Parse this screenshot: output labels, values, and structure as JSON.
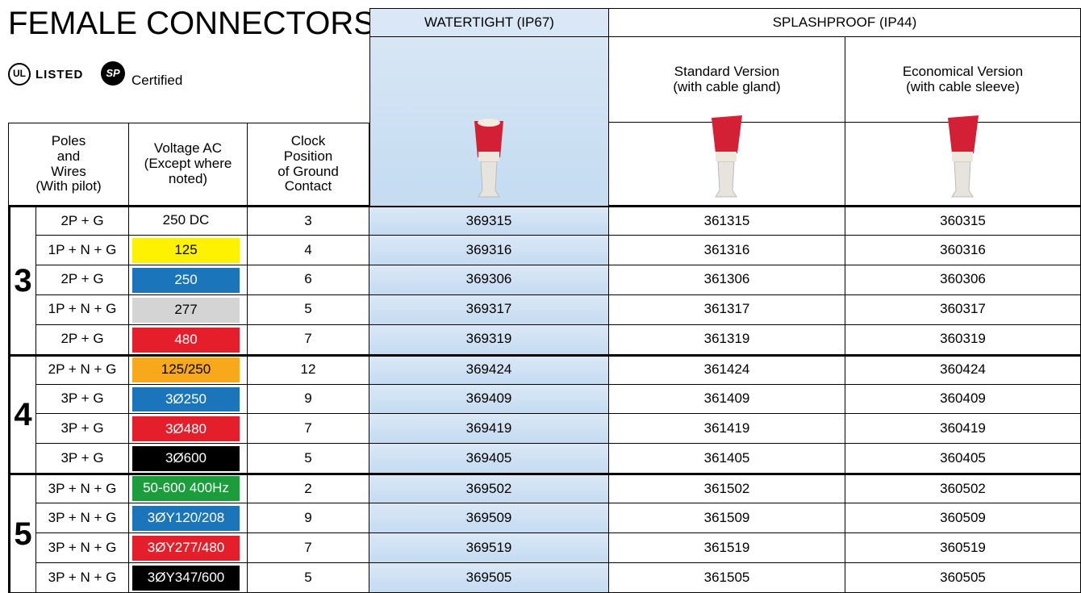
{
  "header": {
    "title": "FEMALE CONNECTORS",
    "ul_logo": "UL",
    "listed": "LISTED",
    "csa_logo": "SP",
    "certified": "Certified"
  },
  "column_groups": [
    {
      "label": "WATERTIGHT (IP67)"
    },
    {
      "label": "SPLASHPROOF (IP44)",
      "sub": [
        "Standard Version\n(with cable gland)",
        "Economical Version\n(with cable sleeve)"
      ]
    }
  ],
  "columns": [
    "Poles\nand\nWires\n(With pilot)",
    "Voltage AC\n(Except where\nnoted)",
    "Clock\nPosition\nof Ground\nContact"
  ],
  "groups": [
    {
      "poles": "3",
      "rows": [
        {
          "wires": "2P + G",
          "voltage": "250 DC",
          "voltage_color": "#ffffff",
          "clock": "3",
          "parts": [
            "369315",
            "361315",
            "360315"
          ]
        },
        {
          "wires": "1P + N + G",
          "voltage": "125",
          "voltage_color": "#fff200",
          "clock": "4",
          "parts": [
            "369316",
            "361316",
            "360316"
          ]
        },
        {
          "wires": "2P + G",
          "voltage": "250",
          "voltage_color": "#1b75bb",
          "clock": "6",
          "parts": [
            "369306",
            "361306",
            "360306"
          ]
        },
        {
          "wires": "1P + N + G",
          "voltage": "277",
          "voltage_color": "#d4d4d4",
          "clock": "5",
          "parts": [
            "369317",
            "361317",
            "360317"
          ]
        },
        {
          "wires": "2P + G",
          "voltage": "480",
          "voltage_color": "#e41e2b",
          "clock": "7",
          "parts": [
            "369319",
            "361319",
            "360319"
          ]
        }
      ]
    },
    {
      "poles": "4",
      "rows": [
        {
          "wires": "2P + N + G",
          "voltage": "125/250",
          "voltage_color": "#f7a81b",
          "clock": "12",
          "parts": [
            "369424",
            "361424",
            "360424"
          ]
        },
        {
          "wires": "3P + G",
          "voltage": "3Ø250",
          "voltage_color": "#1b75bb",
          "clock": "9",
          "parts": [
            "369409",
            "361409",
            "360409"
          ]
        },
        {
          "wires": "3P + G",
          "voltage": "3Ø480",
          "voltage_color": "#e41e2b",
          "clock": "7",
          "parts": [
            "369419",
            "361419",
            "360419"
          ]
        },
        {
          "wires": "3P + G",
          "voltage": "3Ø600",
          "voltage_color": "#000000",
          "clock": "5",
          "parts": [
            "369405",
            "361405",
            "360405"
          ]
        }
      ]
    },
    {
      "poles": "5",
      "rows": [
        {
          "wires": "3P + N + G",
          "voltage": "50-600 400Hz",
          "voltage_color": "#1a9d3a",
          "clock": "2",
          "parts": [
            "369502",
            "361502",
            "360502"
          ]
        },
        {
          "wires": "3P + N + G",
          "voltage": "3ØY120/208",
          "voltage_color": "#1b75bb",
          "clock": "9",
          "parts": [
            "369509",
            "361509",
            "360509"
          ]
        },
        {
          "wires": "3P + N + G",
          "voltage": "3ØY277/480",
          "voltage_color": "#e41e2b",
          "clock": "7",
          "parts": [
            "369519",
            "361519",
            "360519"
          ]
        },
        {
          "wires": "3P + N + G",
          "voltage": "3ØY347/600",
          "voltage_color": "#000000",
          "clock": "5",
          "parts": [
            "369505",
            "361505",
            "360505"
          ]
        }
      ]
    }
  ]
}
